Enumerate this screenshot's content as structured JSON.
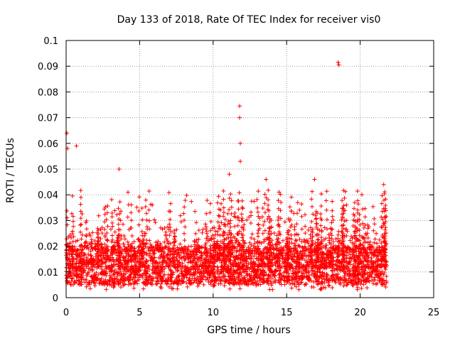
{
  "chart_data": {
    "type": "scatter",
    "title": "Day 133 of 2018, Rate Of TEC Index for receiver vis0",
    "xlabel": "GPS time / hours",
    "ylabel": "ROTI / TECUs",
    "xlim": [
      0,
      25
    ],
    "ylim": [
      0,
      0.1
    ],
    "x_ticks": [
      "0",
      "5",
      "10",
      "15",
      "20",
      "25"
    ],
    "y_ticks": [
      "0",
      "0.01",
      "0.02",
      "0.03",
      "0.04",
      "0.05",
      "0.06",
      "0.07",
      "0.08",
      "0.09",
      "0.1"
    ],
    "grid": true,
    "marker": "+",
    "color": "#ff0000",
    "data_range_hours": [
      0,
      21.8
    ],
    "baseline_band": [
      0.005,
      0.02
    ],
    "notable_points": [
      {
        "x": 0.05,
        "y": 0.064
      },
      {
        "x": 0.1,
        "y": 0.058
      },
      {
        "x": 0.7,
        "y": 0.059
      },
      {
        "x": 3.6,
        "y": 0.05
      },
      {
        "x": 11.1,
        "y": 0.048
      },
      {
        "x": 11.8,
        "y": 0.0745
      },
      {
        "x": 11.8,
        "y": 0.07
      },
      {
        "x": 11.85,
        "y": 0.06
      },
      {
        "x": 11.85,
        "y": 0.053
      },
      {
        "x": 13.6,
        "y": 0.046
      },
      {
        "x": 16.9,
        "y": 0.046
      },
      {
        "x": 18.5,
        "y": 0.0915
      },
      {
        "x": 18.55,
        "y": 0.0905
      },
      {
        "x": 21.6,
        "y": 0.044
      }
    ]
  }
}
